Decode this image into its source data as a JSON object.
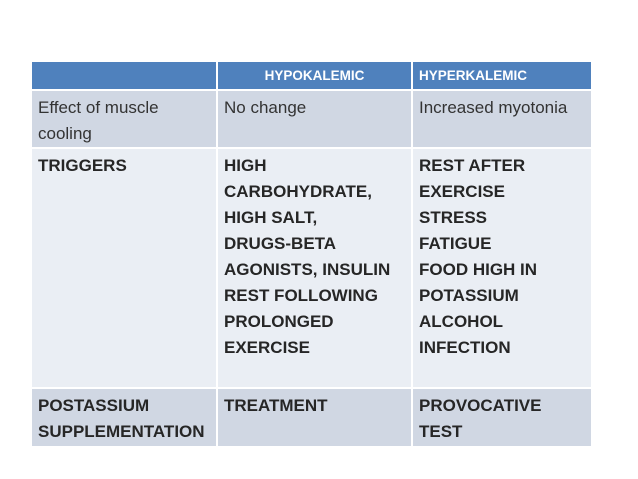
{
  "slide": {
    "background": "#ffffff"
  },
  "table": {
    "columns": [
      "",
      "HYPOKALEMIC",
      "HYPERKALEMIC"
    ],
    "rows": [
      {
        "label": "Effect of muscle\ncooling",
        "hypokalemic": "No change",
        "hyperkalemic": "Increased myotonia"
      },
      {
        "label": "TRIGGERS",
        "hypokalemic": "HIGH\nCARBOHYDRATE,\nHIGH SALT,\nDRUGS-BETA\nAGONISTS, INSULIN\nREST FOLLOWING\nPROLONGED\nEXERCISE",
        "hyperkalemic": "REST AFTER\nEXERCISE\nSTRESS\nFATIGUE\nFOOD HIGH IN\nPOTASSIUM\nALCOHOL\nINFECTION"
      },
      {
        "label": "POSTASSIUM\nSUPPLEMENTATION",
        "hypokalemic": "TREATMENT",
        "hyperkalemic": "PROVOCATIVE TEST"
      }
    ],
    "colors": {
      "header_bg": "#4f81bd",
      "header_text": "#ffffff",
      "band_row_bg": "#d0d7e3",
      "light_row_bg": "#eaeef4",
      "body_text": "#262626",
      "grid_line": "#ffffff",
      "slide_bg": "#ffffff"
    }
  }
}
